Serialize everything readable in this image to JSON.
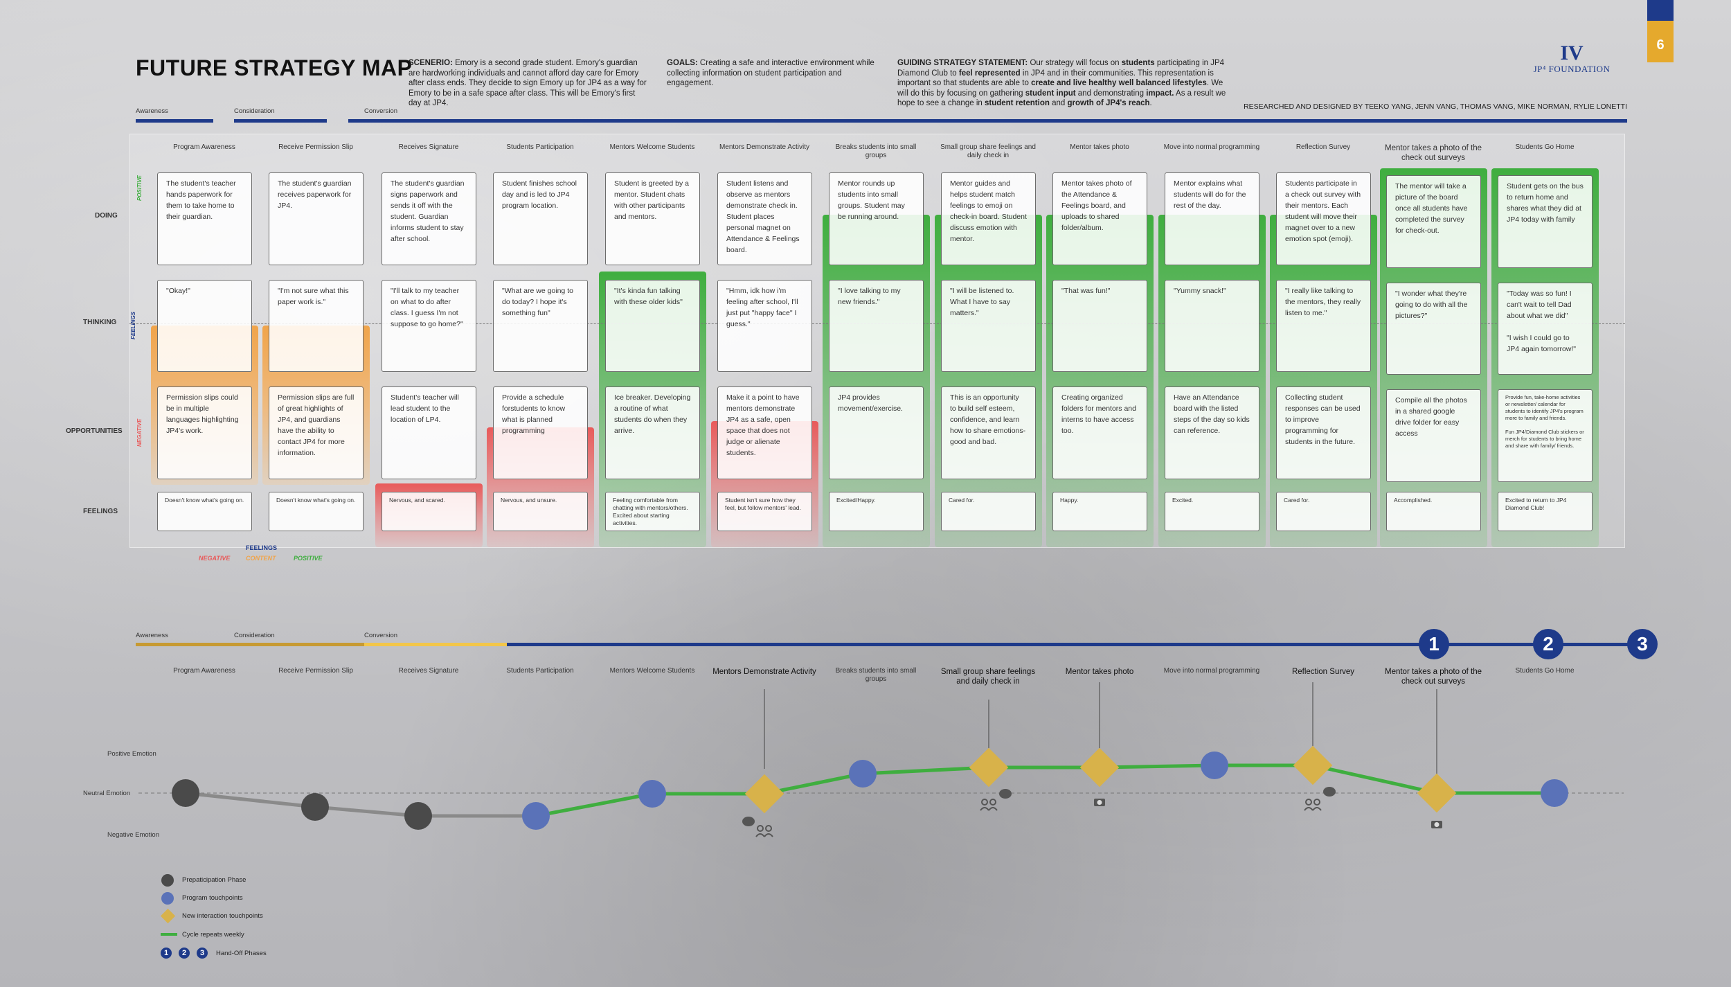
{
  "title": "FUTURE STRATEGY MAP",
  "page_number": "6",
  "scenario": {
    "label": "SCENERIO:",
    "text": " Emory is a second grade student. Emory's guardian are hardworking individuals and cannot afford day care for Emory after class ends. They decide to sign Emory up for JP4 as a way for Emory to be in a safe space after class. This will be Emory's first day at JP4."
  },
  "goals": {
    "label": "GOALS:",
    "text": " Creating a safe and interactive environment while collecting information on student participation and engagement."
  },
  "guiding": {
    "label": "GUIDING STRATEGY STATEMENT:",
    "parts": [
      " Our strategy will focus on ",
      "students",
      " participating in JP4 Diamond Club to ",
      "feel represented",
      " in JP4 and in their communities. This representation is important so that students are able to ",
      "create and live healthy well balanced lifestyles",
      ". We will do this by focusing on gathering ",
      "student input",
      " and demonstrating ",
      "impact.",
      " As a result we hope to see a change in ",
      "student retention",
      " and ",
      "growth of JP4's reach",
      "."
    ]
  },
  "logo": {
    "mark": "IV",
    "name": "JP⁴ FOUNDATION"
  },
  "credits": "RESEARCHED AND DESIGNED BY TEEKO YANG, JENN VANG, THOMAS VANG, MIKE NORMAN, RYLIE LONETTI",
  "phases": [
    "Awareness",
    "Consideration",
    "Conversion"
  ],
  "rows": [
    "DOING",
    "THINKING",
    "OPPORTUNITIES",
    "FEELINGS"
  ],
  "side_labels": {
    "positive": "POSITIVE",
    "negative": "NEGATIVE",
    "feelings": "FEELINGS"
  },
  "feelings_legend": {
    "title": "FEELINGS",
    "negative": "NEGATIVE",
    "content": "CONTENT",
    "positive": "POSITIVE"
  },
  "columns": [
    {
      "head": "Program Awareness",
      "doing": "The student's teacher hands paperwork for them to take home to their guardian.",
      "thinking": "\"Okay!\"",
      "opp": "Permission slips could be in multiple languages highlighting JP4's work.",
      "feel": "Doesn't know what's going on."
    },
    {
      "head": "Receive Permission Slip",
      "doing": "The student's guardian receives paperwork for JP4.",
      "thinking": "\"I'm not sure what this paper work is.\"",
      "opp": "Permission slips are full of great highlights of JP4, and guardians have the ability to contact JP4 for more information.",
      "feel": "Doesn't know what's going on."
    },
    {
      "head": "Receives Signature",
      "doing": "The student's guardian signs paperwork and sends it off with the student. Guardian informs student to stay after school.",
      "thinking": "\"I'll talk to my teacher on what to do after class. I guess I'm not suppose to go home?\"",
      "opp": "Student's teacher will lead student to the location of LP4.",
      "feel": "Nervous, and scared."
    },
    {
      "head": "Students Participation",
      "doing": "Student finishes school day and is led to JP4 program location.",
      "thinking": "\"What are we going to do today? I hope it's something fun\"",
      "opp": "Provide a schedule forstudents to know what is planned programming",
      "feel": "Nervous, and unsure."
    },
    {
      "head": "Mentors Welcome Students",
      "doing": "Student is greeted by a mentor. Student chats with other participants and mentors.",
      "thinking": "\"It's kinda fun talking with these older kids\"",
      "opp": "Ice breaker. Developing a routine of what students do when they arrive.",
      "feel": "Feeling comfortable from chatting with mentors/others. Excited about starting activities."
    },
    {
      "head": "Mentors Demonstrate Activity",
      "doing": "Student listens and observe as mentors demonstrate check in. Student places personal magnet on Attendance & Feelings board.",
      "thinking": "\"Hmm, idk how i'm feeling after school, I'll just put \"happy face\" I guess.\"",
      "opp": "Make it a point to have mentors demonstrate JP4 as a safe, open space that does not judge or alienate students.",
      "feel": "Student isn't sure how they feel, but follow mentors' lead."
    },
    {
      "head": "Breaks students into small groups",
      "doing": "Mentor rounds up students into small groups. Student may be running around.",
      "thinking": "\"I love talking to my new friends.\"",
      "opp": "JP4 provides movement/exercise.",
      "feel": "Excited/Happy."
    },
    {
      "head": "Small group share feelings and daily check in",
      "doing": "Mentor guides and helps student match feelings to emoji on check-in board. Student discuss emotion with mentor.",
      "thinking": "\"I will be listened to. What I have to say matters.\"",
      "opp": "This is an opportunity to build self esteem, confidence, and learn how to share emotions- good and bad.",
      "feel": "Cared for."
    },
    {
      "head": "Mentor takes photo",
      "doing": "Mentor takes photo of the Attendance & Feelings board, and uploads to shared folder/album.",
      "thinking": "\"That was fun!\"",
      "opp": "Creating organized folders for mentors and interns to have access too.",
      "feel": "Happy."
    },
    {
      "head": "Move into normal programming",
      "doing": "Mentor explains what students will do for the rest of the day.",
      "thinking": "\"Yummy snack!\"",
      "opp": "Have an Attendance board with the listed steps of the day so kids can reference.",
      "feel": "Excited."
    },
    {
      "head": "Reflection Survey",
      "doing": "Students participate in a check out survey with their mentors. Each student will move their magnet over to a new emotion spot (emoji).",
      "thinking": "\"I really like talking to the mentors, they really listen to me.\"",
      "opp": "Collecting student responses can be used to improve programming for students in the future.",
      "feel": "Cared for."
    },
    {
      "head": "Mentor takes a photo of the check out surveys",
      "doing": "The mentor will take a picture of the board once all students have completed the survey for check-out.",
      "thinking": "\"I wonder what they're going to do with all the pictures?\"",
      "opp": "Compile all the photos in a shared google drive folder for easy access",
      "feel": "Accomplished."
    },
    {
      "head": "Students Go Home",
      "doing": "Student gets on the bus to return home and shares what they did at JP4 today with family",
      "thinking": "\"Today was so fun! I can't wait to tell Dad about what we did\"\n\n\"I wish I could go to JP4 again tomorrow!\"",
      "opp": "Provide fun, take-home activities or newsletter/ calendar for students to identify JP4's program more to family and friends.\n\nFun JP4/Diamond Club stickers or merch for students to bring home and share with family/ friends.",
      "feel": "Excited to return to JP4 Diamond Club!"
    }
  ],
  "journey": {
    "emotion_labels": [
      "Positive Emotion",
      "Neutral Emotion",
      "Negative Emotion"
    ],
    "heads": [
      "Program Awareness",
      "Receive Permission Slip",
      "Receives Signature",
      "Students Participation",
      "Mentors Welcome Students",
      "Mentors Demonstrate Activity",
      "Breaks students into small groups",
      "Small group share feelings and daily check in",
      "Mentor takes photo",
      "Move into normal programming",
      "Reflection Survey",
      "Mentor takes a photo of the check out surveys",
      "Students Go Home"
    ],
    "handoffs": [
      "1",
      "2",
      "3"
    ]
  },
  "legend": [
    "Prepaticipation Phase",
    "Program touchpoints",
    "New interaction touchpoints",
    "Cycle repeats weekly",
    "Hand-Off Phases"
  ],
  "colors": {
    "navy": "#1e3a8a",
    "gold": "#e5a92d",
    "green": "#3fae3f",
    "orange": "#f0a44a",
    "red": "#e85a5a",
    "dark_dot": "#4a4a4a",
    "blue_dot": "#5a72b8",
    "diamond": "#d8b24a"
  }
}
